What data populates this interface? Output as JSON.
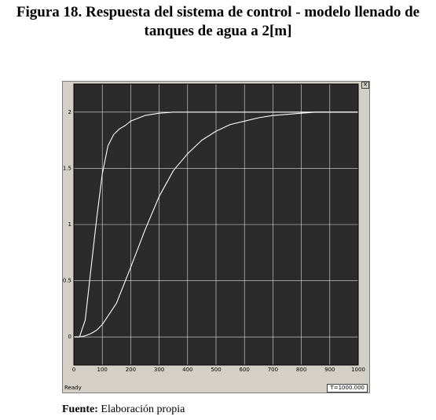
{
  "caption": {
    "line1": "Figura 18. Respuesta del sistema de control - modelo llenado de",
    "line2": "tanques de agua a 2[m]"
  },
  "scope": {
    "status": "Ready",
    "time_readout": "T=1000.000",
    "close_glyph": "✕",
    "colors": {
      "background": "#2b2b2b",
      "grid": "#ffffff",
      "trace": "#ffffff",
      "frame": "#d4d0c8"
    }
  },
  "chart_data": {
    "type": "line",
    "title": "",
    "xlabel": "",
    "ylabel": "",
    "xlim": [
      0,
      1000
    ],
    "ylim": [
      -0.25,
      2.25
    ],
    "x_ticks": [
      "0",
      "100",
      "200",
      "300",
      "400",
      "500",
      "600",
      "700",
      "800",
      "900",
      "1000"
    ],
    "y_ticks": [
      "0",
      "0.5",
      "1",
      "1.5",
      "2"
    ],
    "grid": true,
    "series": [
      {
        "x": [
          0,
          20,
          40,
          60,
          80,
          100,
          120,
          140,
          160,
          180,
          200,
          250,
          300,
          350,
          400,
          500,
          1000
        ],
        "values": [
          0,
          0,
          0.15,
          0.6,
          1.05,
          1.45,
          1.7,
          1.8,
          1.85,
          1.88,
          1.92,
          1.97,
          1.99,
          2.0,
          2.0,
          2.0,
          2.0
        ]
      },
      {
        "x": [
          0,
          20,
          40,
          60,
          80,
          100,
          150,
          200,
          250,
          300,
          350,
          400,
          450,
          500,
          550,
          600,
          650,
          700,
          750,
          800,
          850,
          900,
          1000
        ],
        "values": [
          0,
          0,
          0.01,
          0.03,
          0.06,
          0.11,
          0.3,
          0.62,
          0.95,
          1.25,
          1.48,
          1.63,
          1.75,
          1.83,
          1.89,
          1.92,
          1.95,
          1.97,
          1.98,
          1.99,
          2.0,
          2.0,
          2.0
        ]
      }
    ]
  },
  "footer": {
    "source_label": "Fuente:",
    "source_text": " Elaboración propia"
  }
}
